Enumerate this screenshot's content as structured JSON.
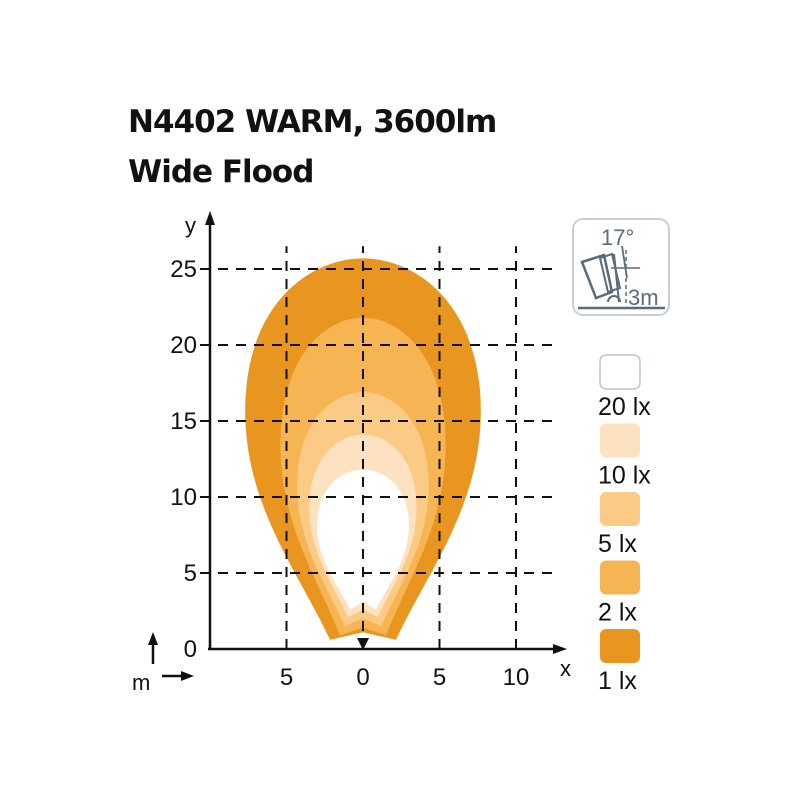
{
  "title": "N4402 WARM, 3600lm",
  "subtitle": "Wide Flood",
  "mount_icon": {
    "icon": "lamp-mount-icon",
    "angle_label": "17°",
    "height_label": "3m",
    "color": "#5a6b7a"
  },
  "chart_data": {
    "type": "isolux contour",
    "xlabel": "x",
    "ylabel": "y",
    "unit_label": "m",
    "xlim": [
      -10,
      13
    ],
    "ylim": [
      0,
      27
    ],
    "x_ticks": [
      -5,
      0,
      5,
      10
    ],
    "x_tick_labels": [
      "5",
      "0",
      "5",
      "10"
    ],
    "y_ticks": [
      0,
      5,
      10,
      15,
      20,
      25
    ],
    "y_tick_labels": [
      "0",
      "5",
      "10",
      "15",
      "20",
      "25"
    ],
    "grid": "dashed",
    "legend_placement": "right",
    "series": [
      {
        "name": "1 lx",
        "color": "#e99620",
        "max_range_m": 25.7,
        "half_width_m": 7.7,
        "base_y_m": 0.6
      },
      {
        "name": "2 lx",
        "color": "#f6b453",
        "max_range_m": 21.8,
        "half_width_m": 5.4,
        "base_y_m": 0.9
      },
      {
        "name": "5 lx",
        "color": "#fbcb86",
        "max_range_m": 16.9,
        "half_width_m": 4.3,
        "base_y_m": 1.5
      },
      {
        "name": "10 lx",
        "color": "#fde2c1",
        "max_range_m": 14.1,
        "half_width_m": 3.5,
        "base_y_m": 2.1
      },
      {
        "name": "20 lx",
        "color": "#ffffff",
        "max_range_m": 11.8,
        "half_width_m": 3.0,
        "base_y_m": 2.6
      }
    ]
  }
}
